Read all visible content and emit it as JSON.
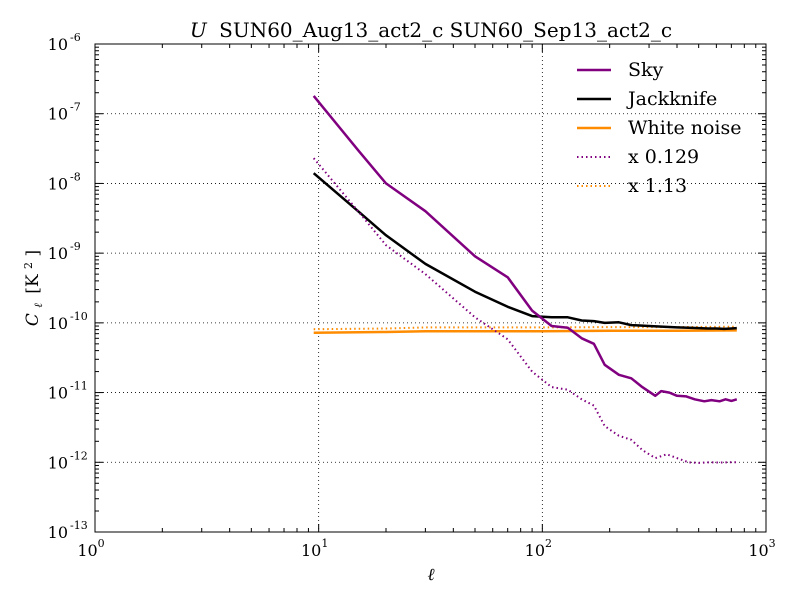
{
  "chart_data": {
    "type": "line",
    "title_italic": "U",
    "title_rest": "SUN60_Aug13_act2_c SUN60_Sep13_act2_c",
    "xlabel": "ℓ",
    "ylabel_main": "C",
    "ylabel_sub": "ℓ",
    "ylabel_unit_pre": "[K",
    "ylabel_unit_exp": "2",
    "ylabel_unit_post": "]",
    "xscale": "log",
    "yscale": "log",
    "xlim": [
      1,
      1000
    ],
    "ylim": [
      1e-13,
      1e-06
    ],
    "grid": true,
    "legend_position": "top-right",
    "x_ticks": [
      {
        "base": "10",
        "exp": "0",
        "value": 1
      },
      {
        "base": "10",
        "exp": "1",
        "value": 10
      },
      {
        "base": "10",
        "exp": "2",
        "value": 100
      },
      {
        "base": "10",
        "exp": "3",
        "value": 1000
      }
    ],
    "y_ticks": [
      {
        "base": "10",
        "exp": "-6",
        "value": 1e-06
      },
      {
        "base": "10",
        "exp": "-7",
        "value": 1e-07
      },
      {
        "base": "10",
        "exp": "-8",
        "value": 1e-08
      },
      {
        "base": "10",
        "exp": "-9",
        "value": 1e-09
      },
      {
        "base": "10",
        "exp": "-10",
        "value": 1e-10
      },
      {
        "base": "10",
        "exp": "-11",
        "value": 1e-11
      },
      {
        "base": "10",
        "exp": "-12",
        "value": 1e-12
      },
      {
        "base": "10",
        "exp": "-13",
        "value": 1e-13
      }
    ],
    "series": [
      {
        "name": "Sky",
        "color": "#800080",
        "style": "solid",
        "points": [
          [
            9.5,
            1.8e-07
          ],
          [
            15,
            3e-08
          ],
          [
            20,
            1e-08
          ],
          [
            30,
            4e-09
          ],
          [
            50,
            9e-10
          ],
          [
            70,
            4.5e-10
          ],
          [
            90,
            1.5e-10
          ],
          [
            110,
            9e-11
          ],
          [
            130,
            8.5e-11
          ],
          [
            150,
            6e-11
          ],
          [
            170,
            5e-11
          ],
          [
            190,
            2.5e-11
          ],
          [
            220,
            1.8e-11
          ],
          [
            250,
            1.6e-11
          ],
          [
            280,
            1.2e-11
          ],
          [
            320,
            9e-12
          ],
          [
            340,
            1.05e-11
          ],
          [
            370,
            1e-11
          ],
          [
            400,
            9e-12
          ],
          [
            440,
            8.8e-12
          ],
          [
            480,
            8e-12
          ],
          [
            530,
            7.5e-12
          ],
          [
            570,
            7.8e-12
          ],
          [
            620,
            7.5e-12
          ],
          [
            660,
            8e-12
          ],
          [
            700,
            7.6e-12
          ],
          [
            740,
            8e-12
          ]
        ]
      },
      {
        "name": "Jackknife",
        "color": "#000000",
        "style": "solid",
        "points": [
          [
            9.5,
            1.4e-08
          ],
          [
            15,
            4e-09
          ],
          [
            20,
            1.8e-09
          ],
          [
            30,
            7e-10
          ],
          [
            50,
            2.8e-10
          ],
          [
            70,
            1.7e-10
          ],
          [
            90,
            1.25e-10
          ],
          [
            110,
            1.2e-10
          ],
          [
            130,
            1.2e-10
          ],
          [
            150,
            1.08e-10
          ],
          [
            170,
            1.06e-10
          ],
          [
            190,
            1e-10
          ],
          [
            220,
            1.02e-10
          ],
          [
            250,
            9.3e-11
          ],
          [
            300,
            9e-11
          ],
          [
            350,
            8.8e-11
          ],
          [
            400,
            8.6e-11
          ],
          [
            450,
            8.5e-11
          ],
          [
            500,
            8.4e-11
          ],
          [
            550,
            8.3e-11
          ],
          [
            600,
            8.3e-11
          ],
          [
            650,
            8.2e-11
          ],
          [
            700,
            8.3e-11
          ],
          [
            740,
            8.4e-11
          ]
        ]
      },
      {
        "name": "White noise",
        "color": "#ff8c00",
        "style": "solid",
        "points": [
          [
            9.5,
            7.2e-11
          ],
          [
            20,
            7.4e-11
          ],
          [
            30,
            7.6e-11
          ],
          [
            50,
            7.6e-11
          ],
          [
            100,
            7.6e-11
          ],
          [
            200,
            7.7e-11
          ],
          [
            400,
            7.7e-11
          ],
          [
            740,
            7.8e-11
          ]
        ]
      },
      {
        "name": "x 0.129",
        "color": "#800080",
        "style": "dotted",
        "points": [
          [
            9.5,
            2.3e-08
          ],
          [
            15,
            4e-09
          ],
          [
            20,
            1.3e-09
          ],
          [
            30,
            5e-10
          ],
          [
            50,
            1.2e-10
          ],
          [
            70,
            5.8e-11
          ],
          [
            90,
            2e-11
          ],
          [
            110,
            1.2e-11
          ],
          [
            130,
            1.1e-11
          ],
          [
            150,
            8e-12
          ],
          [
            170,
            6.5e-12
          ],
          [
            190,
            3.3e-12
          ],
          [
            220,
            2.4e-12
          ],
          [
            250,
            2.1e-12
          ],
          [
            280,
            1.5e-12
          ],
          [
            320,
            1.15e-12
          ],
          [
            360,
            1.3e-12
          ],
          [
            400,
            1.15e-12
          ],
          [
            450,
            1e-12
          ],
          [
            500,
            9.8e-13
          ],
          [
            560,
            1e-12
          ],
          [
            620,
            9.9e-13
          ],
          [
            680,
            1e-12
          ],
          [
            740,
            1e-12
          ]
        ]
      },
      {
        "name": "x 1.13",
        "color": "#ff8c00",
        "style": "dotted",
        "points": [
          [
            9.5,
            8.1e-11
          ],
          [
            20,
            8.3e-11
          ],
          [
            30,
            8.6e-11
          ],
          [
            50,
            8.6e-11
          ],
          [
            100,
            8.6e-11
          ],
          [
            200,
            8.7e-11
          ],
          [
            400,
            8.7e-11
          ],
          [
            740,
            8.8e-11
          ]
        ]
      }
    ]
  }
}
